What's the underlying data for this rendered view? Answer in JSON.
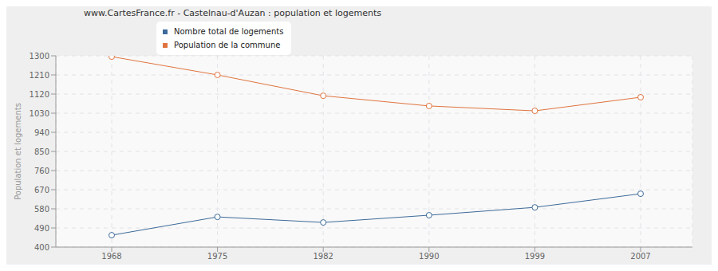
{
  "chart_data": {
    "type": "line",
    "title": "www.CartesFrance.fr - Castelnau-d'Auzan : population et logements",
    "y_label": "Population et logements",
    "categories": [
      "1968",
      "1975",
      "1982",
      "1990",
      "1999",
      "2007"
    ],
    "series": [
      {
        "name": "Nombre total de logements",
        "color": "#3d6a99",
        "marker": "circle",
        "values": [
          456,
          542,
          516,
          550,
          587,
          651
        ]
      },
      {
        "name": "Population de la commune",
        "color": "#e0743f",
        "marker": "circle",
        "values": [
          1296,
          1210,
          1112,
          1064,
          1041,
          1105
        ]
      }
    ],
    "ylim": [
      400,
      1300
    ],
    "yticks": [
      400,
      490,
      580,
      670,
      760,
      850,
      940,
      1030,
      1120,
      1210,
      1300
    ],
    "grid": true
  }
}
